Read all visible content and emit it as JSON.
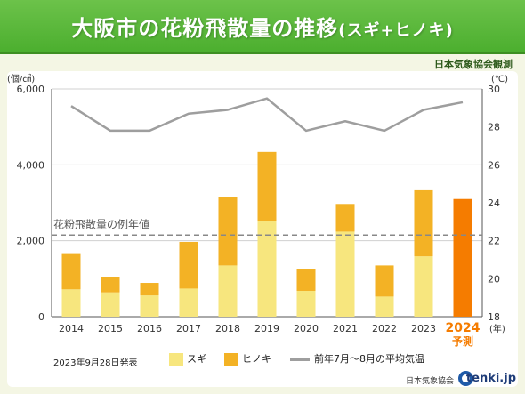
{
  "header": {
    "title": "大阪市の花粉飛散量の推移",
    "subtitle": "(スギ+ヒノキ)",
    "source": "日本気象協会観測"
  },
  "release_note": "2023年9月28日発表",
  "legend": {
    "sugi": "スギ",
    "hinoki": "ヒノキ",
    "temp": "前年7月～8月の平均気温"
  },
  "footer": {
    "org": "日本気象協会",
    "brand": "tenki.jp"
  },
  "colors": {
    "sugi": "#f7e67e",
    "hinoki": "#f3b225",
    "forecast": "#f57c00",
    "temp_line": "#9e9e9e",
    "normal_line": "#888888"
  },
  "chart_data": {
    "type": "bar",
    "stacked": true,
    "categories": [
      "2014",
      "2015",
      "2016",
      "2017",
      "2018",
      "2019",
      "2020",
      "2021",
      "2022",
      "2023",
      "2024"
    ],
    "forecast_index": 10,
    "forecast_label": "予測",
    "series": [
      {
        "name": "スギ",
        "values": [
          720,
          640,
          560,
          740,
          1350,
          2520,
          680,
          2240,
          530,
          1590,
          null
        ]
      },
      {
        "name": "ヒノキ",
        "values": [
          930,
          400,
          330,
          1230,
          1800,
          1820,
          570,
          730,
          820,
          1740,
          null
        ]
      }
    ],
    "forecast_total": 3100,
    "temperature": {
      "name": "前年7月～8月の平均気温",
      "values": [
        29.1,
        27.8,
        27.8,
        28.7,
        28.9,
        29.5,
        27.8,
        28.3,
        27.8,
        28.9,
        29.3
      ]
    },
    "normal": {
      "label": "花粉飛散量の例年値",
      "value": 2150
    },
    "y_left": {
      "unit": "(個/㎠)",
      "min": 0,
      "max": 6000,
      "ticks": [
        "0",
        "2,000",
        "4,000",
        "6,000"
      ],
      "tick_values": [
        0,
        2000,
        4000,
        6000
      ]
    },
    "y_right": {
      "unit": "(℃)",
      "min": 18,
      "max": 30,
      "ticks": [
        "18",
        "20",
        "22",
        "24",
        "26",
        "28",
        "30"
      ]
    },
    "x_unit": "(年)",
    "grid": true
  }
}
